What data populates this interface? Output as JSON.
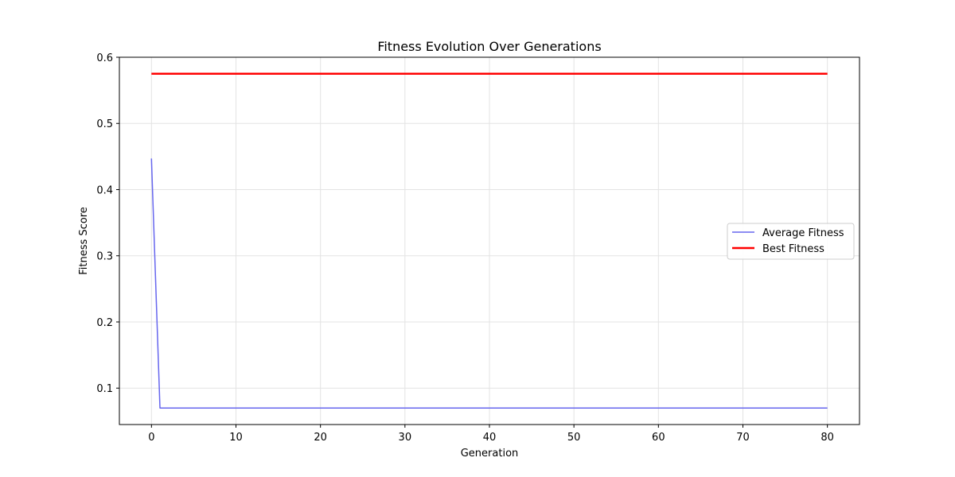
{
  "chart_data": {
    "type": "line",
    "title": "Fitness Evolution Over Generations",
    "xlabel": "Generation",
    "ylabel": "Fitness Score",
    "xlim": [
      -3.8,
      83.8
    ],
    "ylim": [
      0.045,
      0.6
    ],
    "xticks": [
      0,
      10,
      20,
      30,
      40,
      50,
      60,
      70,
      80
    ],
    "yticks": [
      0.1,
      0.2,
      0.3,
      0.4,
      0.5,
      0.6
    ],
    "grid": true,
    "legend_position": "center-right",
    "series": [
      {
        "name": "Average Fitness",
        "color": "#6666ee",
        "x": [
          0,
          1,
          80
        ],
        "y": [
          0.447,
          0.07,
          0.07
        ]
      },
      {
        "name": "Best Fitness",
        "color": "#ff0000",
        "x": [
          0,
          80
        ],
        "y": [
          0.575,
          0.575
        ]
      }
    ]
  }
}
